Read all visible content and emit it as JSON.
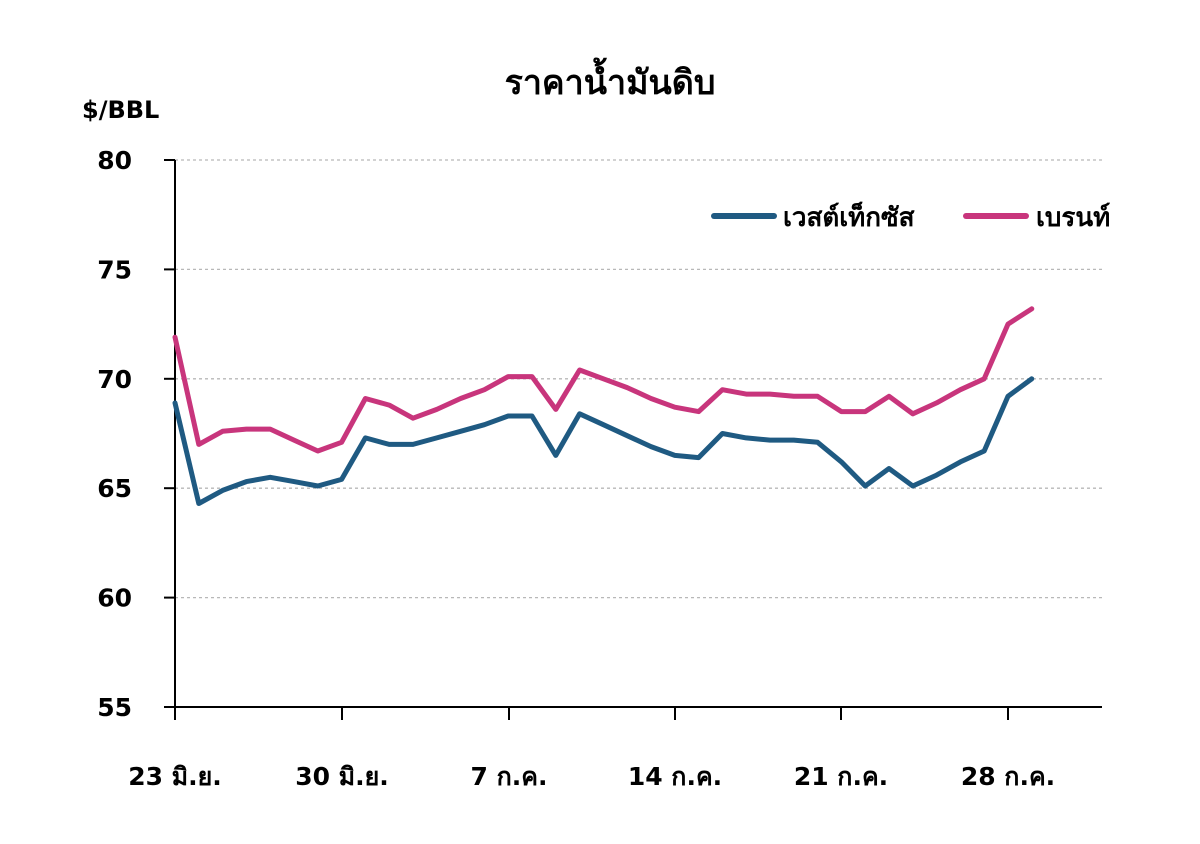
{
  "chart_data": {
    "type": "line",
    "title": "ราคาน้ำมันดิบ",
    "ylabel": "$/BBL",
    "xlabel": "",
    "ylim": [
      55,
      80
    ],
    "yticks": [
      "55",
      "60",
      "65",
      "70",
      "75",
      "80"
    ],
    "x_tick_labels": [
      "23 มิ.ย.",
      "30 มิ.ย.",
      "7 ก.ค.",
      "14 ก.ค.",
      "21 ก.ค.",
      "28 ก.ค."
    ],
    "grid": true,
    "legend_position": "top-right",
    "series": [
      {
        "name": "เวสต์เท็กซัส",
        "color": "#1f5a82",
        "values": [
          68.9,
          64.3,
          64.9,
          65.3,
          65.5,
          65.3,
          65.1,
          65.4,
          67.3,
          67.0,
          67.0,
          67.3,
          67.6,
          67.9,
          68.3,
          68.3,
          66.5,
          68.4,
          67.9,
          67.4,
          66.9,
          66.5,
          66.4,
          67.5,
          67.3,
          67.2,
          67.2,
          67.1,
          66.2,
          65.1,
          65.9,
          65.1,
          65.6,
          66.2,
          66.7,
          69.2,
          70.0
        ]
      },
      {
        "name": "เบรนท์",
        "color": "#c8357c",
        "values": [
          71.9,
          67.0,
          67.6,
          67.7,
          67.7,
          67.2,
          66.7,
          67.1,
          69.1,
          68.8,
          68.2,
          68.6,
          69.1,
          69.5,
          70.1,
          70.1,
          68.6,
          70.4,
          70.0,
          69.6,
          69.1,
          68.7,
          68.5,
          69.5,
          69.3,
          69.3,
          69.2,
          69.2,
          68.5,
          68.5,
          69.2,
          68.4,
          68.9,
          69.5,
          70.0,
          72.5,
          73.2
        ]
      }
    ]
  }
}
